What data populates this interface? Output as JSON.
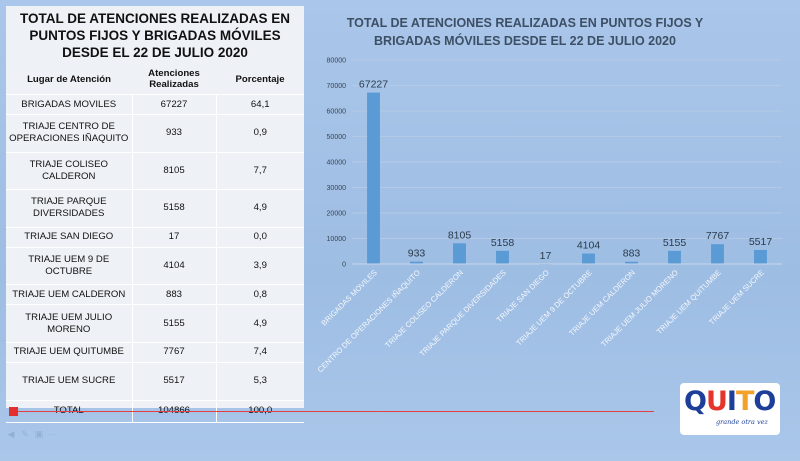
{
  "table": {
    "title": "TOTAL DE ATENCIONES REALIZADAS EN PUNTOS FIJOS Y BRIGADAS MÓVILES DESDE EL 22 DE JULIO 2020",
    "headers": [
      "Lugar de Atención",
      "Atenciones Realizadas",
      "Porcentaje"
    ],
    "rows": [
      {
        "place": "BRIGADAS MOVILES",
        "count": "67227",
        "pct": "64,1"
      },
      {
        "place": "TRIAJE CENTRO DE OPERACIONES IÑAQUITO",
        "count": "933",
        "pct": "0,9"
      },
      {
        "place": "TRIAJE COLISEO CALDERON",
        "count": "8105",
        "pct": "7,7"
      },
      {
        "place": "TRIAJE PARQUE DIVERSIDADES",
        "count": "5158",
        "pct": "4,9"
      },
      {
        "place": "TRIAJE SAN DIEGO",
        "count": "17",
        "pct": "0,0"
      },
      {
        "place": "TRIAJE UEM 9 DE OCTUBRE",
        "count": "4104",
        "pct": "3,9"
      },
      {
        "place": "TRIAJE UEM CALDERON",
        "count": "883",
        "pct": "0,8"
      },
      {
        "place": "TRIAJE UEM JULIO MORENO",
        "count": "5155",
        "pct": "4,9"
      },
      {
        "place": "TRIAJE UEM QUITUMBE",
        "count": "7767",
        "pct": "7,4"
      },
      {
        "place": "TRIAJE UEM SUCRE",
        "count": "5517",
        "pct": "5,3"
      }
    ],
    "total": {
      "place": "TOTAL",
      "count": "104866",
      "pct": "100,0"
    }
  },
  "chart_data": {
    "type": "bar",
    "title": "TOTAL DE ATENCIONES REALIZADAS EN PUNTOS FIJOS Y BRIGADAS MÓVILES DESDE EL 22 DE JULIO 2020",
    "categories": [
      "BRIGADAS MOVILES",
      "CENTRO DE OPERACIONES IÑAQUITO",
      "TRIAJE COLISEO CALDERON",
      "TRIAJE PARQUE DIVERSIDADES",
      "TRIAJE SAN DIEGO",
      "TRIAJE UEM 9 DE OCTUBRE",
      "TRIAJE UEM CALDERON",
      "TRIAJE UEM JULIO MORENO",
      "TRIAJE UEM QUITUMBE",
      "TRIAJE UEM SUCRE"
    ],
    "values": [
      67227,
      933,
      8105,
      5158,
      17,
      4104,
      883,
      5155,
      7767,
      5517
    ],
    "yticks": [
      0,
      10000,
      20000,
      30000,
      40000,
      50000,
      60000,
      70000,
      80000
    ],
    "ylim": [
      0,
      80000
    ],
    "xlabel": "",
    "ylabel": "",
    "grid": true,
    "legend": "none",
    "bar_color": "#5b9bd5",
    "data_labels": true
  },
  "logo": {
    "letters": [
      "Q",
      "U",
      "I",
      "T",
      "O"
    ],
    "tagline": "grande otra vez",
    "colors": {
      "blue": "#1d3f9a",
      "red": "#e4342b",
      "orange": "#f2a22b"
    }
  },
  "player": {
    "progress": 0.0,
    "accent": "#e34040"
  }
}
